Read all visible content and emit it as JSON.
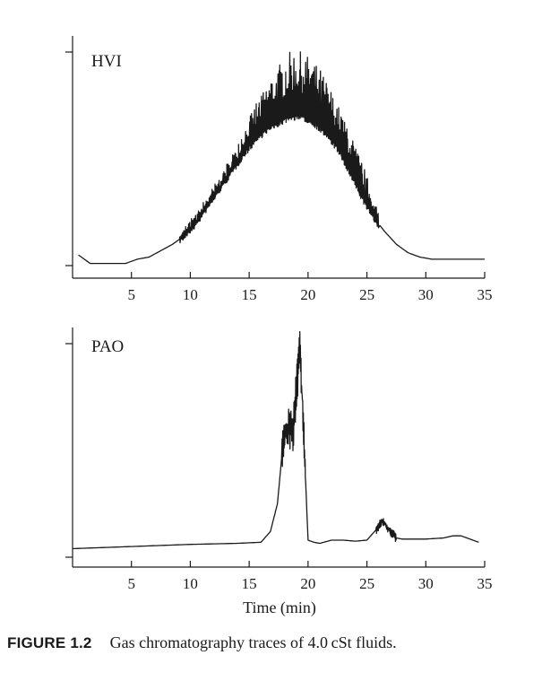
{
  "figure": {
    "caption_label": "FIGURE 1.2",
    "caption_text": "Gas chromatography traces of 4.0 cSt fluids."
  },
  "chart_data": [
    {
      "type": "line",
      "panel": "HVI",
      "xlabel": "",
      "ylabel": "",
      "xlim": [
        0,
        35
      ],
      "xticks": [
        5,
        10,
        15,
        20,
        25,
        30,
        35
      ],
      "y_unit": "relative detector response (0 = baseline, 1 = top tick)",
      "ylim": [
        0,
        1.08
      ],
      "grid": false,
      "envelope": {
        "x": [
          0.5,
          1.5,
          3,
          4.5,
          5.5,
          6.5,
          7.5,
          8.5,
          9.5,
          10.5,
          11.5,
          12.5,
          13.5,
          14.5,
          15.5,
          16.5,
          17.5,
          18.5,
          19.5,
          20.5,
          21.5,
          22.5,
          23.5,
          24.5,
          25.5,
          26.5,
          27.5,
          28.5,
          29.5,
          30.5,
          32,
          34,
          35
        ],
        "lower": [
          0.05,
          0.01,
          0.01,
          0.01,
          0.03,
          0.04,
          0.07,
          0.1,
          0.14,
          0.2,
          0.28,
          0.36,
          0.44,
          0.52,
          0.59,
          0.64,
          0.67,
          0.7,
          0.7,
          0.67,
          0.62,
          0.55,
          0.44,
          0.33,
          0.23,
          0.16,
          0.1,
          0.06,
          0.04,
          0.03,
          0.03,
          0.03,
          0.03
        ],
        "upper": [
          0.05,
          0.01,
          0.01,
          0.01,
          0.03,
          0.04,
          0.07,
          0.11,
          0.18,
          0.25,
          0.33,
          0.42,
          0.52,
          0.64,
          0.76,
          0.86,
          0.94,
          1.01,
          1.0,
          0.95,
          0.86,
          0.76,
          0.62,
          0.47,
          0.3,
          0.16,
          0.1,
          0.06,
          0.04,
          0.03,
          0.03,
          0.03,
          0.03
        ]
      },
      "resolved_region": [
        9,
        26
      ],
      "peak_spacing_min": 0.25
    },
    {
      "type": "line",
      "panel": "PAO",
      "xlabel": "Time (min)",
      "ylabel": "",
      "xlim": [
        0,
        35
      ],
      "xticks": [
        5,
        10,
        15,
        20,
        25,
        30,
        35
      ],
      "y_unit": "relative detector response (0 = baseline, 1 = top tick)",
      "ylim": [
        0,
        1.08
      ],
      "grid": false,
      "trace": {
        "x": [
          0,
          5,
          10,
          14,
          16,
          16.8,
          17.4,
          17.9,
          18.3,
          18.7,
          19.0,
          19.3,
          19.6,
          20.0,
          20.5,
          21.0,
          22.0,
          23.0,
          24.0,
          25.0,
          25.8,
          26.3,
          26.6,
          27.0,
          27.5,
          28.0,
          30.0,
          31.5,
          32.3,
          33.0,
          33.5,
          34.0,
          34.5
        ],
        "y": [
          0.04,
          0.05,
          0.06,
          0.065,
          0.07,
          0.12,
          0.25,
          0.55,
          0.62,
          0.58,
          0.8,
          0.98,
          0.62,
          0.08,
          0.07,
          0.065,
          0.08,
          0.08,
          0.075,
          0.08,
          0.13,
          0.17,
          0.15,
          0.12,
          0.09,
          0.085,
          0.085,
          0.09,
          0.1,
          0.1,
          0.09,
          0.08,
          0.07
        ]
      },
      "oscillation_regions": [
        {
          "x": [
            17.8,
            19.8
          ],
          "amplitude": 0.18
        },
        {
          "x": [
            25.8,
            27.5
          ],
          "amplitude": 0.04
        }
      ]
    }
  ],
  "panels": [
    {
      "label": "HVI",
      "xlabel": ""
    },
    {
      "label": "PAO",
      "xlabel": "Time (min)"
    }
  ]
}
